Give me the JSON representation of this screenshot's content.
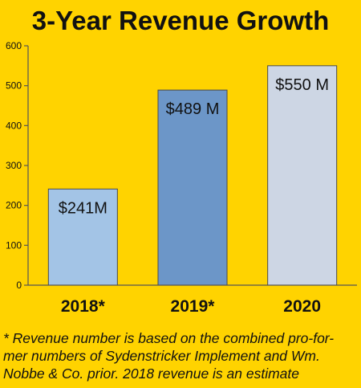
{
  "chart_data": {
    "type": "bar",
    "title": "3-Year Revenue Growth",
    "categories": [
      "2018*",
      "2019*",
      "2020"
    ],
    "values": [
      241,
      489,
      550
    ],
    "data_labels": [
      "$241M",
      "$489 M",
      "$550 M"
    ],
    "bar_colors": [
      "#A3C4E6",
      "#6C96C8",
      "#CDD6E4"
    ],
    "xlabel": "",
    "ylabel": "",
    "ylim": [
      0,
      600
    ],
    "yticks": [
      0,
      100,
      200,
      300,
      400,
      500,
      600
    ],
    "grid": false,
    "legend": "none"
  },
  "footnote": "* Revenue number is based on the combined pro-for-mer numbers of Sydenstricker Implement and Wm. Nobbe & Co. prior. 2018 revenue is an estimate",
  "colors": {
    "background": "#FFD300",
    "axis": "#555555",
    "text": "#111111"
  }
}
